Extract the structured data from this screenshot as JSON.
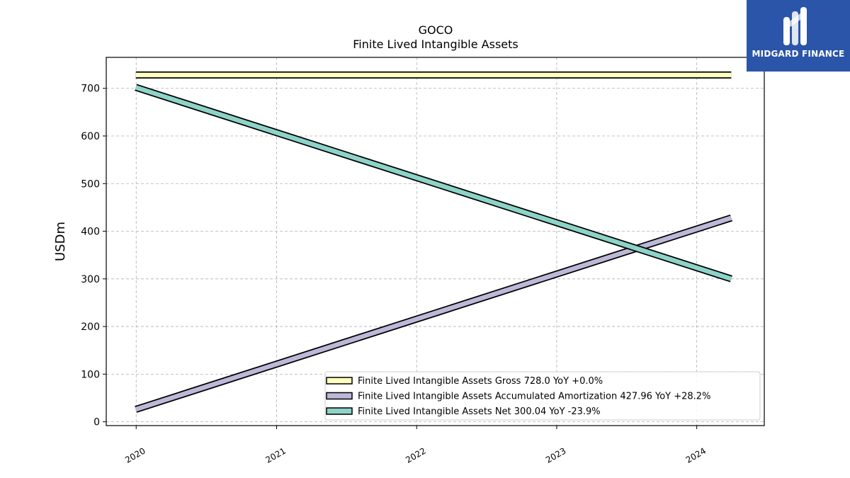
{
  "brand": {
    "name": "MIDGARD FINANCE",
    "color": "#2b55a8",
    "icon": "midgard-logo-icon"
  },
  "chart_data": {
    "type": "line",
    "title": "GOCO",
    "subtitle": "Finite Lived Intangible Assets",
    "xlabel": "",
    "ylabel": "USDm",
    "x_ticks": [
      "2020",
      "2021",
      "2022",
      "2023",
      "2024"
    ],
    "y_ticks": [
      0,
      100,
      200,
      300,
      400,
      500,
      600,
      700
    ],
    "xlim": [
      "2019-10-15",
      "2024-06-25"
    ],
    "ylim": [
      -8,
      765
    ],
    "grid": true,
    "legend_position": "lower-right",
    "series": [
      {
        "name": "Finite Lived Intangible Assets Gross",
        "legend_label": "Finite Lived Intangible Assets Gross  728.0 YoY +0.0%",
        "color": "#ffffbf",
        "x": [
          "2019-12-31",
          "2024-03-31"
        ],
        "y": [
          728.0,
          728.0
        ]
      },
      {
        "name": "Finite Lived Intangible Assets Accumulated Amortization",
        "legend_label": "Finite Lived Intangible Assets Accumulated Amortization  427.96 YoY +28.2%",
        "color": "#bcb8d8",
        "x": [
          "2019-12-31",
          "2024-03-31"
        ],
        "y": [
          26.0,
          427.96
        ]
      },
      {
        "name": "Finite Lived Intangible Assets Net",
        "legend_label": "Finite Lived Intangible Assets Net  300.04 YoY -23.9%",
        "color": "#8dd3c7",
        "x": [
          "2019-12-31",
          "2024-03-31"
        ],
        "y": [
          702.0,
          300.04
        ]
      }
    ]
  }
}
